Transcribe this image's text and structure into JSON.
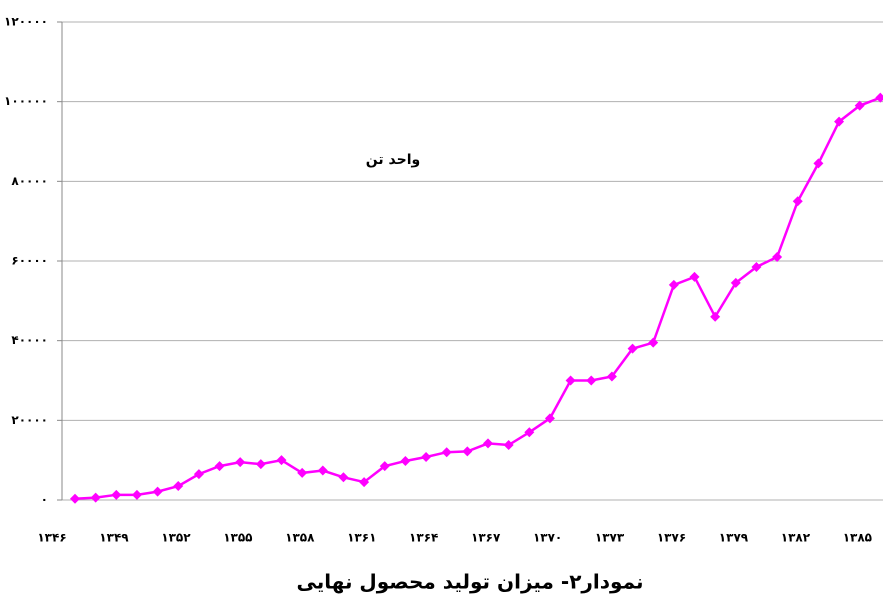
{
  "chart_data": {
    "type": "line",
    "title": "نمودار۲- میزان تولید محصول نهایی",
    "annotation": "واحد تن",
    "categories": [
      "۱۳۴۶",
      null,
      null,
      "۱۳۴۹",
      null,
      null,
      "۱۳۵۲",
      null,
      null,
      "۱۳۵۵",
      null,
      null,
      "۱۳۵۸",
      null,
      null,
      "۱۳۶۱",
      null,
      null,
      "۱۳۶۴",
      null,
      null,
      "۱۳۶۷",
      null,
      null,
      "۱۳۷۰",
      null,
      null,
      "۱۳۷۳",
      null,
      null,
      "۱۳۷۶",
      null,
      null,
      "۱۳۷۹",
      null,
      null,
      "۱۳۸۲",
      null,
      null,
      "۱۳۸۵"
    ],
    "series": [
      {
        "color": "#ff00ff",
        "values": [
          300,
          600,
          1300,
          1300,
          2100,
          3500,
          6500,
          8500,
          9500,
          9000,
          10000,
          6800,
          7400,
          5700,
          4500,
          8500,
          9800,
          10800,
          12000,
          12200,
          14200,
          13800,
          17000,
          20500,
          30000,
          30000,
          31000,
          38000,
          39500,
          54000,
          56000,
          46000,
          54500,
          58500,
          61000,
          75000,
          84500,
          95000,
          99000,
          101000
        ]
      }
    ],
    "ylim": [
      0,
      120000
    ],
    "yticks": [
      {
        "value": 0,
        "label": "۰"
      },
      {
        "value": 20000,
        "label": "۲۰۰۰۰"
      },
      {
        "value": 40000,
        "label": "۴۰۰۰۰"
      },
      {
        "value": 60000,
        "label": "۶۰۰۰۰"
      },
      {
        "value": 80000,
        "label": "۸۰۰۰۰"
      },
      {
        "value": 100000,
        "label": "۱۰۰۰۰۰"
      },
      {
        "value": 120000,
        "label": "۱۲۰۰۰۰"
      }
    ],
    "grid": true
  }
}
